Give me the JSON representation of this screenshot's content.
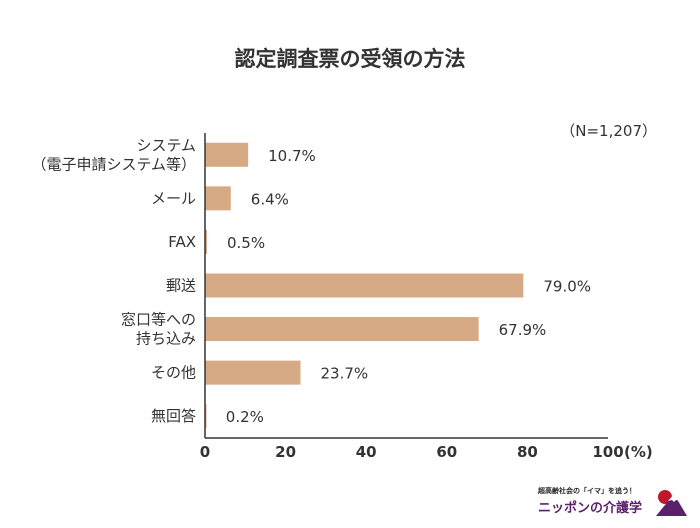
{
  "chart_data": {
    "type": "bar",
    "orientation": "horizontal",
    "title": "認定調査票の受領の方法",
    "note": "（N=1,207）",
    "categories": [
      [
        "システム",
        "（電子申請システム等）"
      ],
      [
        "メール"
      ],
      [
        "FAX"
      ],
      [
        "郵送"
      ],
      [
        "窓口等への",
        "持ち込み"
      ],
      [
        "その他"
      ],
      [
        "無回答"
      ]
    ],
    "values": [
      10.7,
      6.4,
      0.5,
      79.0,
      67.9,
      23.7,
      0.2
    ],
    "value_labels": [
      "10.7%",
      "6.4%",
      "0.5%",
      "79.0%",
      "67.9%",
      "23.7%",
      "0.2%"
    ],
    "xlim": [
      0,
      100
    ],
    "xticks": [
      "0",
      "20",
      "40",
      "60",
      "80",
      "100"
    ],
    "xunit": "(%)",
    "bar_color": "#d6aa84",
    "grid": false,
    "legend": "none"
  },
  "logo": {
    "tagline": "超高齢社会の「イマ」を追う！",
    "name": "ニッポンの介護学"
  }
}
